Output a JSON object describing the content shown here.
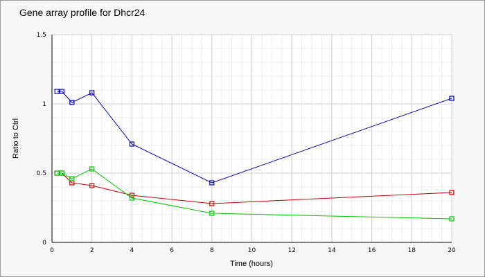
{
  "chart_data": {
    "type": "line",
    "title": "Gene array profile for Dhcr24",
    "xlabel": "Time (hours)",
    "ylabel": "Ratio to Ctrl",
    "xlim": [
      0,
      20
    ],
    "ylim": [
      0,
      1.5
    ],
    "x_ticks": [
      0,
      2,
      4,
      6,
      8,
      10,
      12,
      14,
      16,
      18,
      20
    ],
    "y_ticks": [
      0,
      0.5,
      1,
      1.5
    ],
    "y_tick_labels": [
      "0",
      "0.5",
      "1",
      "1.5"
    ],
    "grid": true,
    "legend": "none",
    "series": [
      {
        "color": "#0000b4",
        "x": [
          0.25,
          0.5,
          1,
          2,
          4,
          8,
          20
        ],
        "y": [
          1.09,
          1.09,
          1.01,
          1.08,
          0.71,
          0.43,
          1.04
        ]
      },
      {
        "color": "#c80000",
        "x": [
          0.25,
          0.5,
          1,
          2,
          4,
          8,
          20
        ],
        "y": [
          0.5,
          0.5,
          0.43,
          0.41,
          0.34,
          0.28,
          0.36
        ]
      },
      {
        "color": "#00c800",
        "x": [
          0.25,
          0.5,
          1,
          2,
          4,
          8,
          20
        ],
        "y": [
          0.5,
          0.5,
          0.46,
          0.53,
          0.32,
          0.21,
          0.17
        ]
      }
    ]
  }
}
